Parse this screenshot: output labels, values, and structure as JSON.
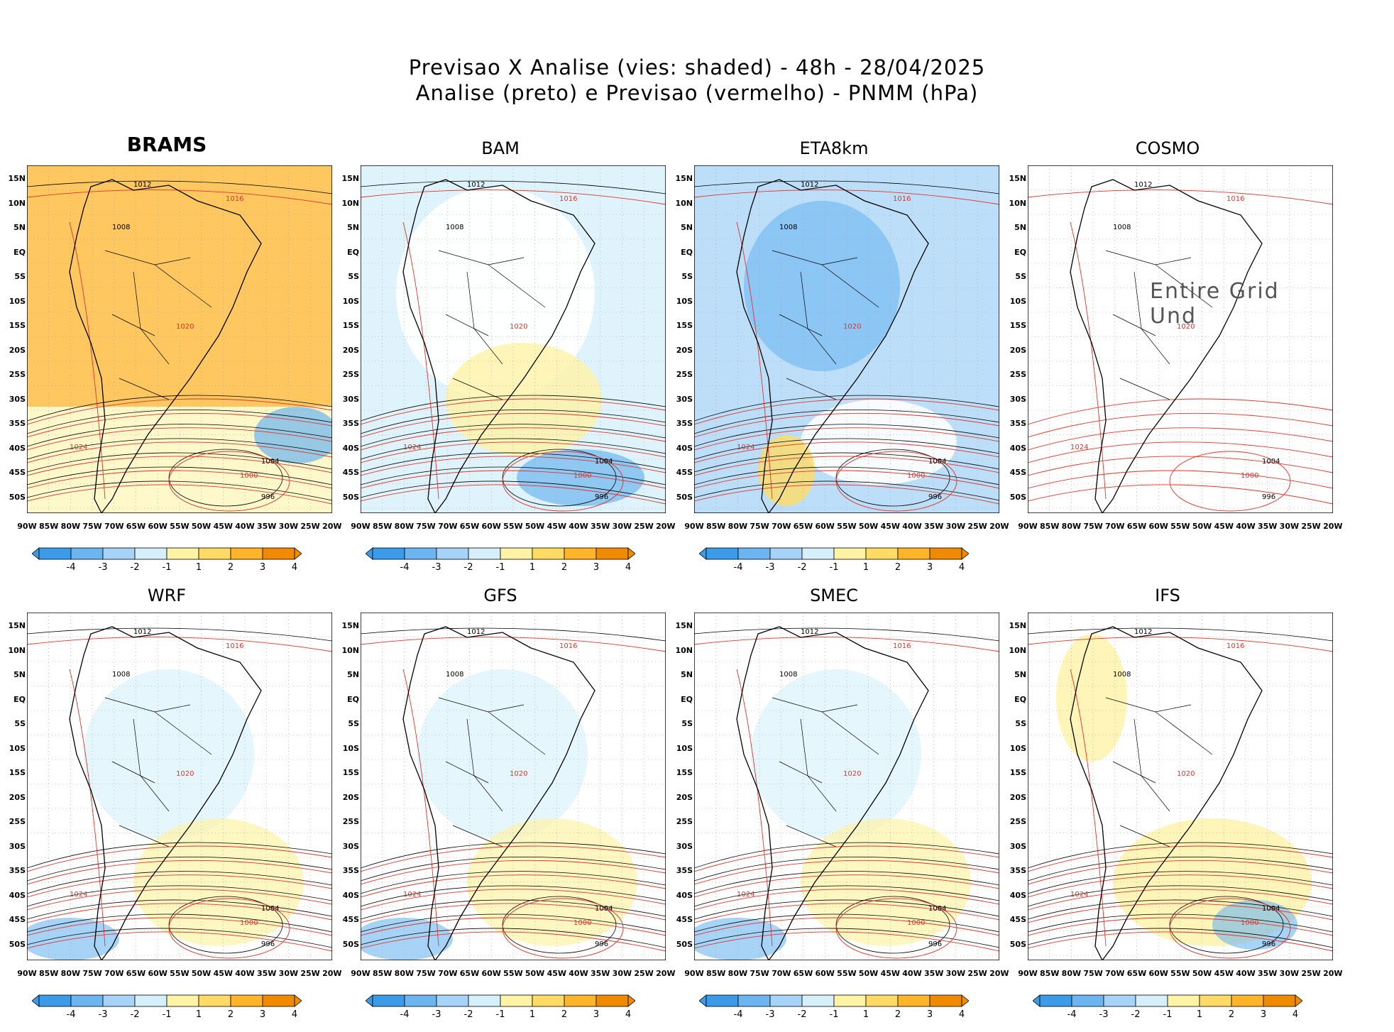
{
  "title": {
    "line1": "Previsao X Analise (vies: shaded) - 48h - 28/04/2025",
    "line2": "Analise (preto) e Previsao (vermelho) - PNMM (hPa)"
  },
  "lat_labels": [
    "15N",
    "10N",
    "5N",
    "EQ",
    "5S",
    "10S",
    "15S",
    "20S",
    "25S",
    "30S",
    "35S",
    "40S",
    "45S",
    "50S"
  ],
  "lon_labels": [
    "90W",
    "85W",
    "80W",
    "75W",
    "70W",
    "65W",
    "60W",
    "55W",
    "50W",
    "45W",
    "40W",
    "35W",
    "30W",
    "25W",
    "20W"
  ],
  "colorbar": {
    "labels": [
      "-4",
      "-3",
      "-2",
      "-1",
      "1",
      "2",
      "3",
      "4"
    ],
    "colors": [
      "#3b9be8",
      "#6cb5f0",
      "#a6d3f7",
      "#d6f0fb",
      "#ffffff",
      "#fff3a6",
      "#ffdb66",
      "#ffb42a",
      "#f08a00"
    ]
  },
  "panels": [
    {
      "id": "brams",
      "title": "BRAMS",
      "bias": "warm-strong",
      "has_colorbar": true
    },
    {
      "id": "bam",
      "title": "BAM",
      "bias": "mixed",
      "has_colorbar": true
    },
    {
      "id": "eta8km",
      "title": "ETA8km",
      "bias": "cold",
      "has_colorbar": true
    },
    {
      "id": "cosmo",
      "title": "COSMO",
      "bias": "none",
      "has_colorbar": false,
      "overlay": "Entire Grid Und"
    },
    {
      "id": "wrf",
      "title": "WRF",
      "bias": "mixed-weak",
      "has_colorbar": true
    },
    {
      "id": "gfs",
      "title": "GFS",
      "bias": "mixed-weak",
      "has_colorbar": true
    },
    {
      "id": "smec",
      "title": "SMEC",
      "bias": "mixed-weak",
      "has_colorbar": true
    },
    {
      "id": "ifs",
      "title": "IFS",
      "bias": "warm-weak",
      "has_colorbar": true
    }
  ],
  "contour_labels": [
    {
      "text": "1012"
    },
    {
      "text": "1016"
    },
    {
      "text": "1008"
    },
    {
      "text": "1020"
    },
    {
      "text": "1004"
    },
    {
      "text": "1000"
    },
    {
      "text": "996"
    },
    {
      "text": "1024"
    }
  ]
}
